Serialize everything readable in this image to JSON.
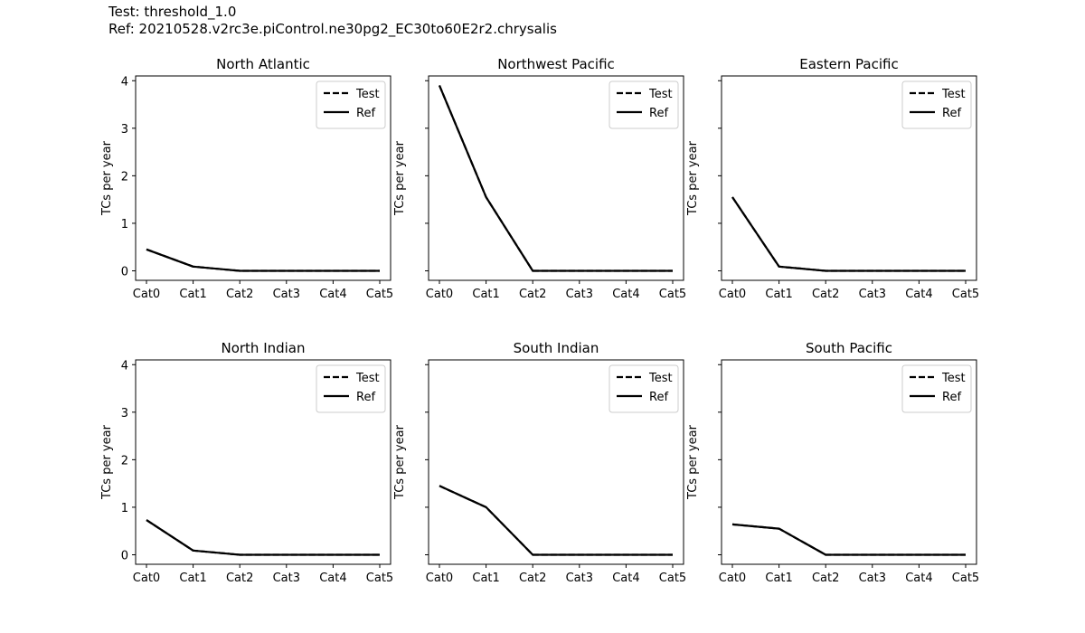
{
  "header": {
    "test_line": "Test: threshold_1.0",
    "ref_line": "Ref: 20210528.v2rc3e.piControl.ne30pg2_EC30to60E2r2.chrysalis"
  },
  "colors": {
    "line": "#000000",
    "legend_border": "#cccccc"
  },
  "chart_data": [
    {
      "type": "line",
      "title": "North Atlantic",
      "ylabel": "TCs per year",
      "categories": [
        "Cat0",
        "Cat1",
        "Cat2",
        "Cat3",
        "Cat4",
        "Cat5"
      ],
      "ylim": [
        -0.2,
        4.1
      ],
      "yticks": [
        0,
        1,
        2,
        3,
        4
      ],
      "show_ytick_labels": true,
      "legend": "upper right",
      "series": [
        {
          "name": "Test",
          "style": "dashed",
          "values": [
            0.45,
            0.09,
            0.0,
            0.0,
            0.0,
            0.0
          ]
        },
        {
          "name": "Ref",
          "style": "solid",
          "values": [
            0.45,
            0.09,
            0.0,
            0.0,
            0.0,
            0.0
          ]
        }
      ]
    },
    {
      "type": "line",
      "title": "Northwest Pacific",
      "ylabel": "TCs per year",
      "categories": [
        "Cat0",
        "Cat1",
        "Cat2",
        "Cat3",
        "Cat4",
        "Cat5"
      ],
      "ylim": [
        -0.2,
        4.1
      ],
      "yticks": [
        0,
        1,
        2,
        3,
        4
      ],
      "show_ytick_labels": false,
      "legend": "upper right",
      "series": [
        {
          "name": "Test",
          "style": "dashed",
          "values": [
            3.9,
            1.55,
            0.0,
            0.0,
            0.0,
            0.0
          ]
        },
        {
          "name": "Ref",
          "style": "solid",
          "values": [
            3.9,
            1.55,
            0.0,
            0.0,
            0.0,
            0.0
          ]
        }
      ]
    },
    {
      "type": "line",
      "title": "Eastern Pacific",
      "ylabel": "TCs per year",
      "categories": [
        "Cat0",
        "Cat1",
        "Cat2",
        "Cat3",
        "Cat4",
        "Cat5"
      ],
      "ylim": [
        -0.2,
        4.1
      ],
      "yticks": [
        0,
        1,
        2,
        3,
        4
      ],
      "show_ytick_labels": false,
      "legend": "upper right",
      "series": [
        {
          "name": "Test",
          "style": "dashed",
          "values": [
            1.55,
            0.09,
            0.0,
            0.0,
            0.0,
            0.0
          ]
        },
        {
          "name": "Ref",
          "style": "solid",
          "values": [
            1.55,
            0.09,
            0.0,
            0.0,
            0.0,
            0.0
          ]
        }
      ]
    },
    {
      "type": "line",
      "title": "North Indian",
      "ylabel": "TCs per year",
      "categories": [
        "Cat0",
        "Cat1",
        "Cat2",
        "Cat3",
        "Cat4",
        "Cat5"
      ],
      "ylim": [
        -0.2,
        4.1
      ],
      "yticks": [
        0,
        1,
        2,
        3,
        4
      ],
      "show_ytick_labels": true,
      "legend": "upper right",
      "series": [
        {
          "name": "Test",
          "style": "dashed",
          "values": [
            0.73,
            0.09,
            0.0,
            0.0,
            0.0,
            0.0
          ]
        },
        {
          "name": "Ref",
          "style": "solid",
          "values": [
            0.73,
            0.09,
            0.0,
            0.0,
            0.0,
            0.0
          ]
        }
      ]
    },
    {
      "type": "line",
      "title": "South Indian",
      "ylabel": "TCs per year",
      "categories": [
        "Cat0",
        "Cat1",
        "Cat2",
        "Cat3",
        "Cat4",
        "Cat5"
      ],
      "ylim": [
        -0.2,
        4.1
      ],
      "yticks": [
        0,
        1,
        2,
        3,
        4
      ],
      "show_ytick_labels": false,
      "legend": "upper right",
      "series": [
        {
          "name": "Test",
          "style": "dashed",
          "values": [
            1.45,
            1.0,
            0.0,
            0.0,
            0.0,
            0.0
          ]
        },
        {
          "name": "Ref",
          "style": "solid",
          "values": [
            1.45,
            1.0,
            0.0,
            0.0,
            0.0,
            0.0
          ]
        }
      ]
    },
    {
      "type": "line",
      "title": "South Pacific",
      "ylabel": "TCs per year",
      "categories": [
        "Cat0",
        "Cat1",
        "Cat2",
        "Cat3",
        "Cat4",
        "Cat5"
      ],
      "ylim": [
        -0.2,
        4.1
      ],
      "yticks": [
        0,
        1,
        2,
        3,
        4
      ],
      "show_ytick_labels": false,
      "legend": "upper right",
      "series": [
        {
          "name": "Test",
          "style": "dashed",
          "values": [
            0.64,
            0.55,
            0.0,
            0.0,
            0.0,
            0.0
          ]
        },
        {
          "name": "Ref",
          "style": "solid",
          "values": [
            0.64,
            0.55,
            0.0,
            0.0,
            0.0,
            0.0
          ]
        }
      ]
    }
  ]
}
